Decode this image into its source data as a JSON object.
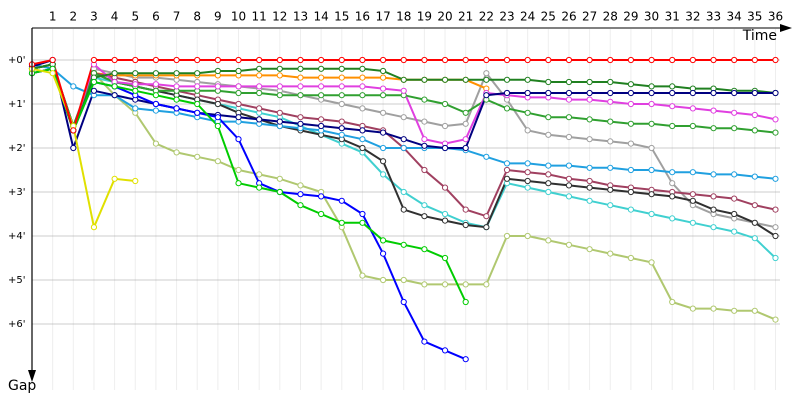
{
  "chart_data": {
    "type": "line",
    "title": "Time",
    "y_label": "Gap",
    "x": [
      0,
      1,
      2,
      3,
      4,
      5,
      6,
      7,
      8,
      9,
      10,
      11,
      12,
      13,
      14,
      15,
      16,
      17,
      18,
      19,
      20,
      21,
      22,
      23,
      24,
      25,
      26,
      27,
      28,
      29,
      30,
      31,
      32,
      33,
      34,
      35,
      36
    ],
    "xlim": [
      0,
      36.8
    ],
    "xticks": [
      1,
      2,
      3,
      4,
      5,
      6,
      7,
      8,
      9,
      10,
      11,
      12,
      13,
      14,
      15,
      16,
      17,
      18,
      19,
      20,
      21,
      22,
      23,
      24,
      25,
      26,
      27,
      28,
      29,
      30,
      31,
      32,
      33,
      34,
      35,
      36
    ],
    "ylim": [
      -0.75,
      7.5
    ],
    "y_inverted": true,
    "grid": true,
    "yticks": [
      {
        "value": 0,
        "label": "+0'"
      },
      {
        "value": 1,
        "label": "+1'"
      },
      {
        "value": 2,
        "label": "+2'"
      },
      {
        "value": 3,
        "label": "+3'"
      },
      {
        "value": 4,
        "label": "+4'"
      },
      {
        "value": 5,
        "label": "+5'"
      },
      {
        "value": 6,
        "label": "+6'"
      }
    ],
    "series": [
      {
        "color": "#b0c870",
        "values": [
          0.2,
          0.1,
          1.6,
          0.3,
          0.8,
          1.2,
          1.9,
          2.1,
          2.2,
          2.3,
          2.5,
          2.6,
          2.7,
          2.85,
          3.0,
          3.8,
          4.9,
          5.0,
          5.0,
          5.1,
          5.1,
          5.1,
          5.1,
          4.0,
          4.0,
          4.1,
          4.2,
          4.3,
          4.4,
          4.5,
          4.6,
          5.5,
          5.65,
          5.65,
          5.7,
          5.7,
          5.9
        ]
      },
      {
        "color": "#a0a0a0",
        "values": [
          0.2,
          0.1,
          1.5,
          0.2,
          0.3,
          0.4,
          0.4,
          0.45,
          0.5,
          0.55,
          0.6,
          0.65,
          0.7,
          0.8,
          0.9,
          1.0,
          1.1,
          1.2,
          1.3,
          1.4,
          1.5,
          1.45,
          0.3,
          0.9,
          1.6,
          1.7,
          1.75,
          1.8,
          1.85,
          1.9,
          2.0,
          2.8,
          3.3,
          3.5,
          3.6,
          3.7,
          3.8
        ]
      },
      {
        "color": "#ff9000",
        "values": [
          0.3,
          0.2,
          1.6,
          0.3,
          0.35,
          0.35,
          0.35,
          0.35,
          0.35,
          0.35,
          0.35,
          0.35,
          0.35,
          0.4,
          0.4,
          0.4,
          0.4,
          0.4,
          0.45,
          0.45,
          0.45,
          0.45,
          0.65,
          null,
          null,
          null,
          null,
          null,
          null,
          null,
          null,
          null,
          null,
          null,
          null,
          null,
          null
        ]
      },
      {
        "color": "#40d0d0",
        "values": [
          0.2,
          0.1,
          1.5,
          0.4,
          0.5,
          0.6,
          0.7,
          0.8,
          0.9,
          1.0,
          1.1,
          1.2,
          1.3,
          1.5,
          1.7,
          1.9,
          2.1,
          2.6,
          3.0,
          3.3,
          3.5,
          3.7,
          3.8,
          2.8,
          2.9,
          3.0,
          3.1,
          3.2,
          3.3,
          3.4,
          3.5,
          3.6,
          3.7,
          3.8,
          3.9,
          4.05,
          4.5
        ]
      },
      {
        "color": "#a04060",
        "values": [
          0.2,
          0.1,
          1.6,
          0.3,
          0.4,
          0.5,
          0.6,
          0.7,
          0.8,
          0.9,
          1.0,
          1.1,
          1.2,
          1.3,
          1.35,
          1.4,
          1.5,
          1.6,
          2.0,
          2.5,
          2.9,
          3.4,
          3.55,
          2.5,
          2.55,
          2.6,
          2.7,
          2.75,
          2.85,
          2.9,
          2.95,
          3.0,
          3.05,
          3.1,
          3.15,
          3.3,
          3.4
        ]
      },
      {
        "color": "#303030",
        "values": [
          0.2,
          0.1,
          1.5,
          0.3,
          0.5,
          0.6,
          0.7,
          0.8,
          0.9,
          1.0,
          1.2,
          1.35,
          1.5,
          1.6,
          1.7,
          1.8,
          2.0,
          2.3,
          3.4,
          3.55,
          3.65,
          3.75,
          3.8,
          2.7,
          2.75,
          2.8,
          2.85,
          2.9,
          2.95,
          3.0,
          3.05,
          3.1,
          3.2,
          3.4,
          3.5,
          3.7,
          4.0
        ]
      },
      {
        "color": "#20a0e0",
        "values": [
          0.1,
          0.2,
          0.6,
          0.8,
          0.8,
          1.1,
          1.15,
          1.2,
          1.3,
          1.4,
          1.4,
          1.45,
          1.5,
          1.55,
          1.6,
          1.7,
          1.8,
          2.0,
          2.0,
          2.0,
          2.0,
          2.05,
          2.2,
          2.35,
          2.35,
          2.4,
          2.4,
          2.45,
          2.45,
          2.5,
          2.5,
          2.55,
          2.55,
          2.6,
          2.6,
          2.65,
          2.7
        ]
      },
      {
        "color": "#30a030",
        "values": [
          0.2,
          0.1,
          1.5,
          0.3,
          0.5,
          0.6,
          0.7,
          0.7,
          0.7,
          0.7,
          0.75,
          0.75,
          0.8,
          0.8,
          0.8,
          0.8,
          0.8,
          0.8,
          0.8,
          0.9,
          1.0,
          1.2,
          0.9,
          1.1,
          1.2,
          1.3,
          1.3,
          1.35,
          1.4,
          1.45,
          1.45,
          1.5,
          1.5,
          1.55,
          1.55,
          1.6,
          1.65
        ]
      },
      {
        "color": "#e040e0",
        "values": [
          0.3,
          0.2,
          1.6,
          0.1,
          0.5,
          0.55,
          0.55,
          0.6,
          0.6,
          0.6,
          0.6,
          0.6,
          0.6,
          0.6,
          0.6,
          0.6,
          0.6,
          0.65,
          0.7,
          1.8,
          1.9,
          1.8,
          0.75,
          0.8,
          0.85,
          0.85,
          0.9,
          0.9,
          0.95,
          1.0,
          1.0,
          1.05,
          1.1,
          1.15,
          1.2,
          1.25,
          1.35
        ]
      },
      {
        "color": "#208020",
        "values": [
          0.2,
          0.1,
          1.6,
          0.4,
          0.3,
          0.3,
          0.3,
          0.3,
          0.3,
          0.25,
          0.25,
          0.2,
          0.2,
          0.2,
          0.2,
          0.2,
          0.2,
          0.25,
          0.45,
          0.45,
          0.45,
          0.45,
          0.45,
          0.45,
          0.45,
          0.5,
          0.5,
          0.5,
          0.5,
          0.55,
          0.6,
          0.6,
          0.65,
          0.65,
          0.7,
          0.7,
          0.75
        ]
      },
      {
        "color": "#000080",
        "values": [
          0.15,
          0.0,
          2.0,
          0.7,
          0.8,
          0.9,
          1.0,
          1.1,
          1.2,
          1.25,
          1.3,
          1.35,
          1.4,
          1.45,
          1.5,
          1.55,
          1.6,
          1.65,
          1.8,
          1.95,
          2.0,
          2.0,
          0.8,
          0.75,
          0.75,
          0.75,
          0.75,
          0.75,
          0.75,
          0.75,
          0.75,
          0.75,
          0.75,
          0.75,
          0.75,
          0.75,
          0.75
        ]
      },
      {
        "color": "#0000ff",
        "values": [
          0.3,
          0.2,
          1.6,
          0.5,
          0.6,
          0.8,
          1.0,
          1.1,
          1.2,
          1.3,
          1.8,
          2.8,
          3.0,
          3.05,
          3.1,
          3.2,
          3.5,
          4.4,
          5.5,
          6.4,
          6.6,
          6.8,
          null,
          null,
          null,
          null,
          null,
          null,
          null,
          null,
          null,
          null,
          null,
          null,
          null,
          null,
          null
        ]
      },
      {
        "color": "#00cc00",
        "values": [
          0.3,
          0.2,
          1.6,
          0.5,
          0.6,
          0.7,
          0.8,
          0.9,
          1.0,
          1.5,
          2.8,
          2.9,
          3.0,
          3.3,
          3.5,
          3.7,
          3.7,
          4.1,
          4.2,
          4.3,
          4.5,
          5.5,
          null,
          null,
          null,
          null,
          null,
          null,
          null,
          null,
          null,
          null,
          null,
          null,
          null,
          null,
          null
        ]
      },
      {
        "color": "#e0e000",
        "values": [
          0.2,
          0.3,
          1.5,
          3.8,
          2.7,
          2.75,
          null,
          null,
          null,
          null,
          null,
          null,
          null,
          null,
          null,
          null,
          null,
          null,
          null,
          null,
          null,
          null,
          null,
          null,
          null,
          null,
          null,
          null,
          null,
          null,
          null,
          null,
          null,
          null,
          null,
          null,
          null
        ]
      },
      {
        "color": "#ff0000",
        "values": [
          0.1,
          0,
          1.6,
          0,
          0,
          0,
          0,
          0,
          0,
          0,
          0,
          0,
          0,
          0,
          0,
          0,
          0,
          0,
          0,
          0,
          0,
          0,
          0,
          0,
          0,
          0,
          0,
          0,
          0,
          0,
          0,
          0,
          0,
          0,
          0,
          0,
          0
        ]
      }
    ]
  }
}
